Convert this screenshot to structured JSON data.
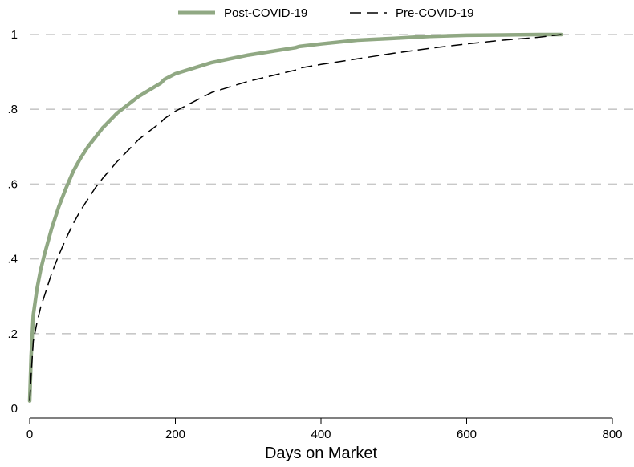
{
  "chart_data": {
    "type": "line",
    "title": "",
    "xlabel": "Days on Market",
    "ylabel": "",
    "xlim": [
      0,
      800
    ],
    "ylim": [
      0,
      1
    ],
    "x_ticks": [
      0,
      200,
      400,
      600,
      800
    ],
    "x_tick_labels": [
      "0",
      "200",
      "400",
      "600",
      "800"
    ],
    "y_ticks": [
      0,
      0.2,
      0.4,
      0.6,
      0.8,
      1
    ],
    "y_tick_labels": [
      "0",
      ".2",
      ".4",
      ".6",
      ".8",
      "1"
    ],
    "grid": "horizontal dashed",
    "legend": "top-center",
    "series": [
      {
        "name": "Post-COVID-19",
        "color": "#90a883",
        "style": "solid-thick",
        "x": [
          0,
          2,
          5,
          10,
          15,
          20,
          30,
          40,
          50,
          60,
          70,
          80,
          90,
          100,
          120,
          150,
          180,
          185,
          200,
          250,
          300,
          365,
          370,
          400,
          450,
          500,
          550,
          600,
          650,
          700,
          730
        ],
        "y": [
          0.02,
          0.14,
          0.25,
          0.32,
          0.37,
          0.41,
          0.48,
          0.54,
          0.59,
          0.635,
          0.67,
          0.7,
          0.725,
          0.75,
          0.79,
          0.835,
          0.87,
          0.88,
          0.895,
          0.925,
          0.945,
          0.965,
          0.968,
          0.975,
          0.985,
          0.99,
          0.995,
          0.998,
          0.999,
          1.0,
          1.0
        ]
      },
      {
        "name": "Pre-COVID-19",
        "color": "#000000",
        "style": "dashed",
        "x": [
          0,
          2,
          5,
          10,
          15,
          20,
          30,
          40,
          50,
          60,
          70,
          80,
          90,
          100,
          120,
          150,
          180,
          185,
          200,
          250,
          300,
          365,
          370,
          400,
          450,
          500,
          550,
          600,
          650,
          700,
          730
        ],
        "y": [
          0.02,
          0.09,
          0.18,
          0.23,
          0.27,
          0.3,
          0.36,
          0.41,
          0.455,
          0.495,
          0.53,
          0.56,
          0.59,
          0.615,
          0.66,
          0.72,
          0.765,
          0.775,
          0.795,
          0.845,
          0.875,
          0.905,
          0.91,
          0.92,
          0.935,
          0.95,
          0.963,
          0.975,
          0.985,
          0.993,
          1.0
        ]
      }
    ]
  }
}
